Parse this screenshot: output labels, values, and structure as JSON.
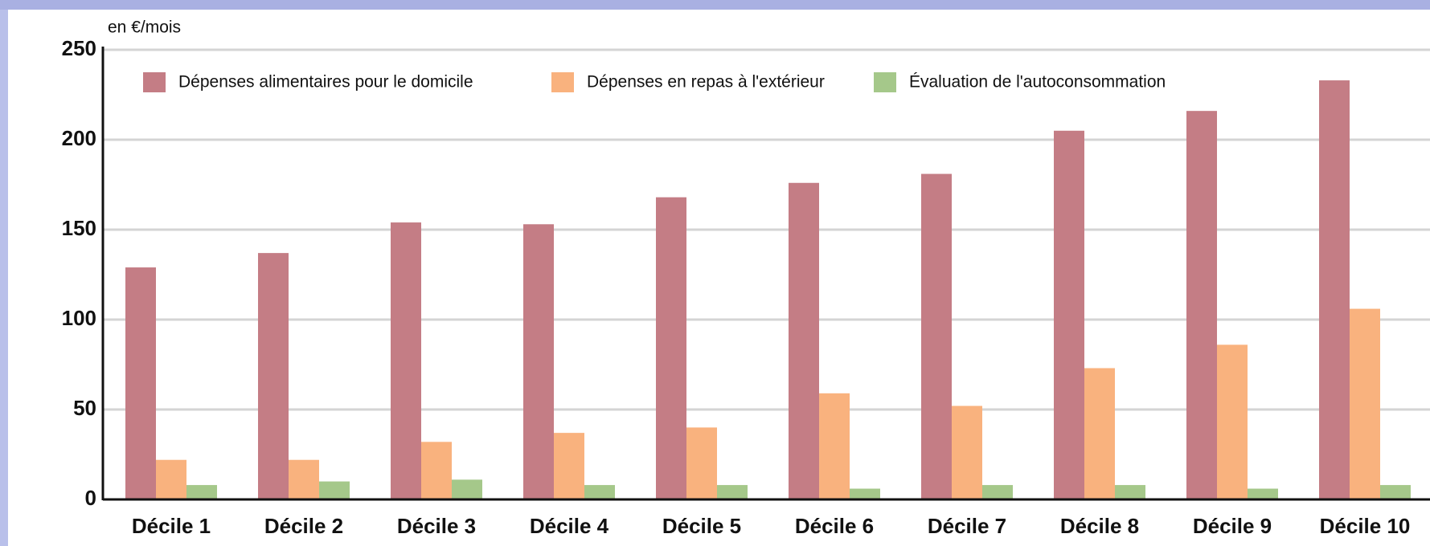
{
  "chart_data": {
    "type": "bar",
    "y_label": "en €/mois",
    "categories": [
      "Décile 1",
      "Décile 2",
      "Décile 3",
      "Décile 4",
      "Décile 5",
      "Décile 6",
      "Décile 7",
      "Décile 8",
      "Décile 9",
      "Décile 10"
    ],
    "series": [
      {
        "name": "Dépenses alimentaires pour le domicile",
        "color": "#c47d85",
        "values": [
          129,
          137,
          154,
          153,
          168,
          176,
          181,
          205,
          216,
          233
        ]
      },
      {
        "name": "Dépenses en repas à l'extérieur",
        "color": "#f9b27e",
        "values": [
          22,
          22,
          32,
          37,
          40,
          59,
          52,
          73,
          86,
          106
        ]
      },
      {
        "name": "Évaluation de l'autoconsommation",
        "color": "#a5c88a",
        "values": [
          8,
          10,
          11,
          8,
          8,
          6,
          8,
          8,
          6,
          8
        ]
      }
    ],
    "ylim": [
      0,
      250
    ],
    "yticks": [
      0,
      50,
      100,
      150,
      200,
      250
    ],
    "grid": true
  }
}
